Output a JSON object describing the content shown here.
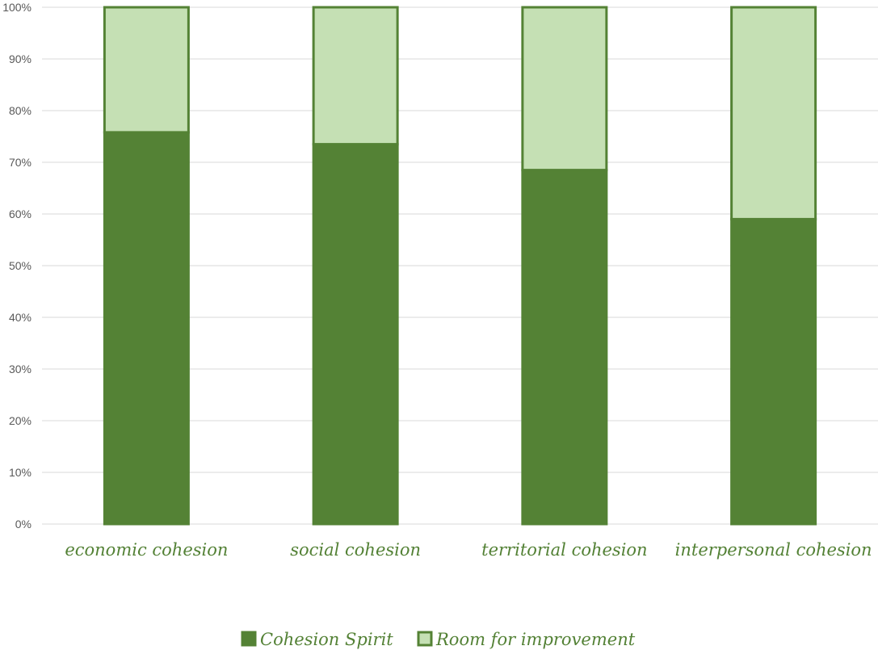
{
  "chart_data": {
    "type": "bar",
    "stacked": true,
    "categories": [
      "economic cohesion",
      "social cohesion",
      "territorial cohesion",
      "interpersonal cohesion"
    ],
    "series": [
      {
        "name": "Cohesion Spirit",
        "values": [
          75.8,
          73.5,
          68.5,
          59.0
        ],
        "color": "#548235"
      },
      {
        "name": "Room for improvement",
        "values": [
          24.2,
          26.5,
          31.5,
          41.0
        ],
        "color": "#c5e0b4"
      }
    ],
    "border_color": "#548235",
    "yticks": [
      "0%",
      "10%",
      "20%",
      "30%",
      "40%",
      "50%",
      "60%",
      "70%",
      "80%",
      "90%",
      "100%"
    ],
    "ylim": [
      0,
      100
    ],
    "grid": true,
    "legend_position": "bottom-center"
  }
}
